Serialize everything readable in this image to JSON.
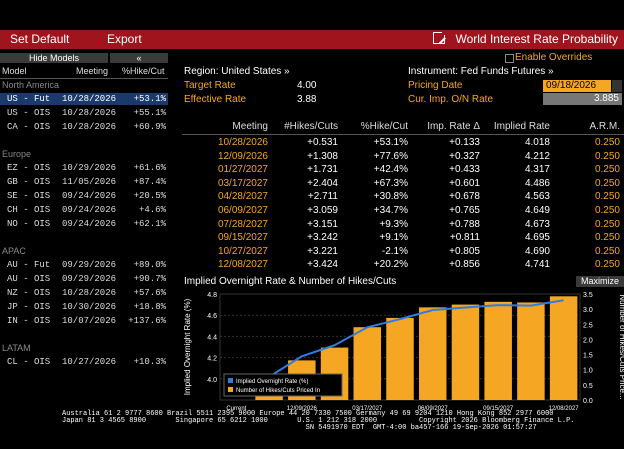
{
  "toolbar": {
    "set_default": "Set Default",
    "export": "Export",
    "title": "World Interest Rate Probability"
  },
  "left_panel": {
    "hide_models": "Hide Models",
    "collapse": "«",
    "headers": {
      "model": "Model",
      "meeting": "Meeting",
      "hike_cut": "%Hike/Cut"
    },
    "regions": [
      {
        "name": "North America",
        "rows": [
          {
            "model": "US - Fut",
            "meeting": "10/28/2026",
            "hike": "+53.1%",
            "selected": true
          },
          {
            "model": "US - OIS",
            "meeting": "10/28/2026",
            "hike": "+55.1%"
          },
          {
            "model": "CA - OIS",
            "meeting": "10/28/2026",
            "hike": "+60.9%"
          }
        ]
      },
      {
        "name": "Europe",
        "rows": [
          {
            "model": "EZ - OIS",
            "meeting": "10/29/2026",
            "hike": "+61.6%"
          },
          {
            "model": "GB - OIS",
            "meeting": "11/05/2026",
            "hike": "+87.4%"
          },
          {
            "model": "SE - OIS",
            "meeting": "09/24/2026",
            "hike": "+20.5%"
          },
          {
            "model": "CH - OIS",
            "meeting": "09/24/2026",
            "hike": "+4.6%"
          },
          {
            "model": "NO - OIS",
            "meeting": "09/24/2026",
            "hike": "+62.1%"
          }
        ]
      },
      {
        "name": "APAC",
        "rows": [
          {
            "model": "AU - Fut",
            "meeting": "09/29/2026",
            "hike": "+89.0%"
          },
          {
            "model": "AU - OIS",
            "meeting": "09/29/2026",
            "hike": "+90.7%"
          },
          {
            "model": "NZ - OIS",
            "meeting": "10/28/2026",
            "hike": "+57.6%"
          },
          {
            "model": "JP - OIS",
            "meeting": "10/30/2026",
            "hike": "+18.8%"
          },
          {
            "model": "IN - OIS",
            "meeting": "10/07/2026",
            "hike": "+137.6%"
          }
        ]
      },
      {
        "name": "LATAM",
        "rows": [
          {
            "model": "CL - OIS",
            "meeting": "10/27/2026",
            "hike": "+10.3%"
          }
        ]
      }
    ]
  },
  "info": {
    "enable_overrides": "Enable Overrides",
    "region": "Region: United States »",
    "instrument": "Instrument: Fed Funds Futures »",
    "target_rate_label": "Target Rate",
    "target_rate": "4.00",
    "effective_rate_label": "Effective Rate",
    "effective_rate": "3.88",
    "pricing_date_label": "Pricing Date",
    "pricing_date": "09/18/2026",
    "cur_imp_label": "Cur. Imp. O/N Rate",
    "cur_imp": "3.885"
  },
  "table": {
    "headers": [
      "Meeting",
      "#Hikes/Cuts",
      "%Hike/Cut",
      "Imp. Rate Δ",
      "Implied Rate",
      "A.R.M."
    ],
    "rows": [
      [
        "10/28/2026",
        "+0.531",
        "+53.1%",
        "+0.133",
        "4.018",
        "0.250"
      ],
      [
        "12/09/2026",
        "+1.308",
        "+77.6%",
        "+0.327",
        "4.212",
        "0.250"
      ],
      [
        "01/27/2027",
        "+1.731",
        "+42.4%",
        "+0.433",
        "4.317",
        "0.250"
      ],
      [
        "03/17/2027",
        "+2.404",
        "+67.3%",
        "+0.601",
        "4.486",
        "0.250"
      ],
      [
        "04/28/2027",
        "+2.711",
        "+30.8%",
        "+0.678",
        "4.563",
        "0.250"
      ],
      [
        "06/09/2027",
        "+3.059",
        "+34.7%",
        "+0.765",
        "4.649",
        "0.250"
      ],
      [
        "07/28/2027",
        "+3.151",
        "+9.3%",
        "+0.788",
        "4.673",
        "0.250"
      ],
      [
        "09/15/2027",
        "+3.242",
        "+9.1%",
        "+0.811",
        "4.695",
        "0.250"
      ],
      [
        "10/27/2027",
        "+3.221",
        "-2.1%",
        "+0.805",
        "4.690",
        "0.250"
      ],
      [
        "12/08/2027",
        "+3.424",
        "+20.2%",
        "+0.856",
        "4.741",
        "0.250"
      ]
    ]
  },
  "chart": {
    "title": "Implied Overnight Rate & Number of Hikes/Cuts",
    "maximize": "Maximize"
  },
  "chart_data": {
    "type": "bar",
    "title": "Implied Overnight Rate & Number of Hikes/Cuts",
    "ylabel": "Implied Overnight Rate (%)",
    "y2label": "Number of Hikes/Cuts Price...",
    "xlabel": "",
    "categories": [
      "Current",
      "10/28/2026",
      "12/09/2026",
      "01/27/2027",
      "03/17/2027",
      "04/28/2027",
      "06/09/2027",
      "07/28/2027",
      "09/15/2027",
      "10/27/2027",
      "12/08/2027"
    ],
    "x_tick_labels": [
      "Current",
      "12/09/2026",
      "03/17/2027",
      "06/09/2027",
      "09/15/2027",
      "12/08/2027"
    ],
    "ylim": [
      3.8,
      4.8
    ],
    "y_ticks": [
      4.0,
      4.2,
      4.4,
      4.6,
      4.8
    ],
    "y2lim": [
      0,
      3.5
    ],
    "y2_ticks": [
      0.0,
      0.5,
      1.0,
      1.5,
      2.0,
      2.5,
      3.0,
      3.5
    ],
    "series": [
      {
        "name": "Implied Overnight Rate (%)",
        "type": "line",
        "color": "#2f7de1",
        "values": [
          3.885,
          4.018,
          4.212,
          4.317,
          4.486,
          4.563,
          4.649,
          4.673,
          4.695,
          4.69,
          4.741
        ]
      },
      {
        "name": "Number of Hikes/Cuts Priced In",
        "type": "bar",
        "color": "#f5a623",
        "values": [
          0,
          0.531,
          1.308,
          1.731,
          2.404,
          2.711,
          3.059,
          3.151,
          3.242,
          3.221,
          3.424
        ]
      }
    ],
    "legend": "bottom-left",
    "grid": true
  },
  "footer": {
    "line1": "Australia 61 2 9777 8600 Brazil 5511 2395 9000 Europe 44 20 7330 7500 Germany 49 69 9204 1210 Hong Kong 852 2977 6000",
    "line2": "Japan 81 3 4565 8900       Singapore 65 6212 1000       U.S. 1 212 318 2000          Copyright 2026 Bloomberg Finance L.P.",
    "line3": "                                                          SN 5491970 EDT  GMT-4:00 ba457-166 19-Sep-2026 01:57:27"
  },
  "colors": {
    "accent": "#a0141e",
    "orange": "#f5a623",
    "blue": "#2f7de1",
    "selected": "#1b3a6b"
  }
}
